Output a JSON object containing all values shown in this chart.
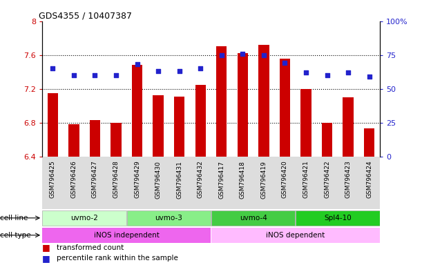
{
  "title": "GDS4355 / 10407387",
  "samples": [
    "GSM796425",
    "GSM796426",
    "GSM796427",
    "GSM796428",
    "GSM796429",
    "GSM796430",
    "GSM796431",
    "GSM796432",
    "GSM796417",
    "GSM796418",
    "GSM796419",
    "GSM796420",
    "GSM796421",
    "GSM796422",
    "GSM796423",
    "GSM796424"
  ],
  "transformed_count": [
    7.15,
    6.78,
    6.83,
    6.8,
    7.48,
    7.12,
    7.11,
    7.25,
    7.7,
    7.62,
    7.72,
    7.56,
    7.2,
    6.8,
    7.1,
    6.73
  ],
  "percentile_rank": [
    65,
    60,
    60,
    60,
    68,
    63,
    63,
    65,
    75,
    76,
    75,
    69,
    62,
    60,
    62,
    59
  ],
  "bar_color": "#cc0000",
  "dot_color": "#2222cc",
  "ylim_left": [
    6.4,
    8.0
  ],
  "ylim_right": [
    0,
    100
  ],
  "yticks_left": [
    6.4,
    6.8,
    7.2,
    7.6,
    8.0
  ],
  "yticks_left_labels": [
    "6.4",
    "6.8",
    "7.2",
    "7.6",
    "8"
  ],
  "yticks_right": [
    0,
    25,
    50,
    75,
    100
  ],
  "yticks_right_labels": [
    "0",
    "25",
    "50",
    "75",
    "100%"
  ],
  "cell_line_groups": [
    {
      "label": "uvmo-2",
      "start": 0,
      "end": 4,
      "color": "#ccffcc"
    },
    {
      "label": "uvmo-3",
      "start": 4,
      "end": 8,
      "color": "#88ee88"
    },
    {
      "label": "uvmo-4",
      "start": 8,
      "end": 12,
      "color": "#44cc44"
    },
    {
      "label": "Spl4-10",
      "start": 12,
      "end": 16,
      "color": "#22cc22"
    }
  ],
  "cell_type_groups": [
    {
      "label": "iNOS independent",
      "start": 0,
      "end": 8,
      "color": "#ee66ee"
    },
    {
      "label": "iNOS dependent",
      "start": 8,
      "end": 16,
      "color": "#ffbbff"
    }
  ],
  "legend_bar_label": "transformed count",
  "legend_dot_label": "percentile rank within the sample",
  "cell_line_label": "cell line",
  "cell_type_label": "cell type",
  "xticklabel_bg": "#dddddd",
  "background_color": "#ffffff"
}
